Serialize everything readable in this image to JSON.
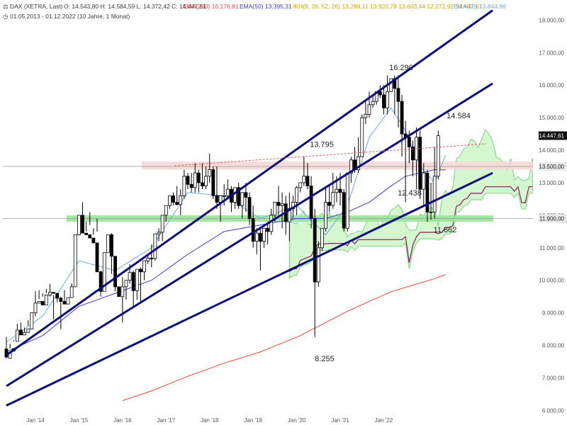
{
  "header": {
    "instrument": "DAX (XETRA, Last)",
    "ohlc": "O: 14.543,80  H: 14.584,59  L: 14.372,42  C: 14.447,61",
    "ema200": "EMA(200)  10.176,81",
    "ema50": "EMA(50)  13.395,31",
    "ikh": "IKH(9, 26, 52, 26)  13.288,11  13.920,78  13.603,44  12.272,92  14.447,61",
    "ema10": "EMA(10)  13.844,96",
    "range": "01.05.2013 - 01.12.2022  (10 Jahre, 1 Monat)"
  },
  "colors": {
    "up": "#ffffff",
    "down": "#000000",
    "ema200": "#e8453c",
    "ema50": "#3b3bc9",
    "ema10": "#6aa8e8",
    "cloud": "#d4f7d0",
    "cloudEdge": "#63c96a",
    "kijun": "#8b1a5a",
    "trend": "#0d0d7a",
    "redZone": "#f6d8d8",
    "greenZone": "#9be39a",
    "lastPrice": "#111111"
  },
  "chart_data": {
    "type": "candlestick",
    "title": "DAX (XETRA, Last)",
    "interval": "1 Monat",
    "x_tick_labels": [
      "Jan '14",
      "Jan '15",
      "Jan '16",
      "Jan '17",
      "Jan '18",
      "Jan '19",
      "Jan '20",
      "Jan '21",
      "Jan '22"
    ],
    "y_tick_labels": [
      "6.000,00",
      "7.000,00",
      "8.000,00",
      "9.000,00",
      "10.000,00",
      "11.000,00",
      "12.000,00",
      "13.000,00",
      "14.000,00",
      "15.000,00",
      "16.000,00",
      "17.000,00",
      "18.000,00"
    ],
    "ylim": [
      5900,
      18400
    ],
    "price_labels": [
      {
        "value": 14447.61,
        "text": "14.447,61"
      },
      {
        "value": 13500,
        "text": "13.500,00"
      },
      {
        "value": 11900,
        "text": "11.900,00"
      }
    ],
    "annotations": [
      {
        "text": "16.290",
        "value": 16290
      },
      {
        "text": "14.584",
        "value": 14584
      },
      {
        "text": "13.795",
        "value": 13795
      },
      {
        "text": "12.438",
        "value": 12438
      },
      {
        "text": "11.862",
        "value": 11862
      },
      {
        "text": "8.255",
        "value": 8255
      }
    ],
    "candles": [
      [
        7890,
        8260,
        7640,
        7600
      ],
      [
        7600,
        8050,
        7780,
        7900
      ],
      [
        7900,
        8160,
        7820,
        8120
      ],
      [
        8120,
        8660,
        8470,
        8300
      ],
      [
        8470,
        8700,
        8320,
        8350
      ],
      [
        8320,
        8550,
        8400,
        8400
      ],
      [
        8400,
        8770,
        8500,
        8600
      ],
      [
        8500,
        8620,
        9000,
        9000
      ],
      [
        9000,
        9660,
        9300,
        8900
      ],
      [
        9300,
        9700,
        9350,
        9420
      ],
      [
        9350,
        9600,
        9240,
        9500
      ],
      [
        9240,
        9730,
        9550,
        9600
      ],
      [
        9550,
        9890,
        9630,
        9500
      ],
      [
        9630,
        9550,
        9600,
        8800
      ],
      [
        9600,
        9330,
        9450,
        9600
      ],
      [
        9450,
        9500,
        9350,
        8500
      ],
      [
        9350,
        9700,
        9270,
        9300
      ],
      [
        9270,
        9600,
        9470,
        9600
      ],
      [
        9470,
        9900,
        9800,
        9700
      ],
      [
        9800,
        10810,
        11400,
        11400
      ],
      [
        11400,
        11900,
        12000,
        11600
      ],
      [
        12000,
        12400,
        11450,
        11600
      ],
      [
        11450,
        11800,
        11400,
        11500
      ],
      [
        11400,
        12100,
        11300,
        11700
      ],
      [
        11300,
        11600,
        11150,
        11400
      ],
      [
        11150,
        11900,
        10260,
        11500
      ],
      [
        10260,
        10300,
        9660,
        9500
      ],
      [
        9660,
        10200,
        10850,
        10000
      ],
      [
        10850,
        11150,
        11400,
        11000
      ],
      [
        11400,
        11450,
        10740,
        10200
      ],
      [
        10740,
        10700,
        9800,
        9660
      ],
      [
        9800,
        10100,
        9500,
        10200
      ],
      [
        9500,
        10100,
        9800,
        8700
      ],
      [
        9800,
        9900,
        10000,
        9400
      ],
      [
        10000,
        10500,
        10240,
        9900
      ],
      [
        10240,
        10300,
        9680,
        9200
      ],
      [
        9680,
        10100,
        10340,
        9400
      ],
      [
        10340,
        10400,
        10260,
        9300
      ],
      [
        10260,
        10500,
        10600,
        10000
      ],
      [
        10600,
        10800,
        10680,
        10500
      ],
      [
        10680,
        11100,
        10670,
        10400
      ],
      [
        10670,
        11000,
        11430,
        10600
      ],
      [
        11430,
        11600,
        11480,
        11200
      ],
      [
        11480,
        11800,
        12000,
        11200
      ],
      [
        12000,
        12300,
        12300,
        11800
      ],
      [
        12300,
        12400,
        12600,
        12200
      ],
      [
        12600,
        12700,
        12400,
        12300
      ],
      [
        12400,
        12900,
        12330,
        12300
      ],
      [
        12330,
        12800,
        12600,
        12000
      ],
      [
        12600,
        13400,
        13200,
        12500
      ],
      [
        13200,
        13300,
        12950,
        12800
      ],
      [
        12950,
        13300,
        12850,
        12700
      ],
      [
        12850,
        13600,
        13300,
        12700
      ],
      [
        13300,
        13400,
        13000,
        12700
      ],
      [
        13000,
        13600,
        12900,
        12800
      ],
      [
        12900,
        13500,
        13200,
        12800
      ],
      [
        13200,
        13900,
        13400,
        13000
      ],
      [
        13400,
        13500,
        12600,
        12500
      ],
      [
        12600,
        13500,
        12400,
        12200
      ],
      [
        12400,
        12500,
        12600,
        11800
      ],
      [
        12600,
        12950,
        12600,
        12300
      ],
      [
        12600,
        13100,
        12800,
        12500
      ],
      [
        12800,
        12900,
        12400,
        12100
      ],
      [
        12400,
        12700,
        12850,
        12200
      ],
      [
        12850,
        13000,
        12300,
        12200
      ],
      [
        12300,
        12600,
        12700,
        11900
      ],
      [
        12700,
        13000,
        12550,
        12100
      ],
      [
        12550,
        12700,
        11900,
        11700
      ],
      [
        11900,
        12300,
        11200,
        11000
      ],
      [
        11200,
        11600,
        11450,
        10800
      ],
      [
        11450,
        11600,
        11200,
        10300
      ],
      [
        11200,
        11400,
        11600,
        11000
      ],
      [
        11600,
        11800,
        11500,
        11100
      ],
      [
        11500,
        12200,
        12000,
        11400
      ],
      [
        12000,
        12400,
        12400,
        11800
      ],
      [
        12400,
        12900,
        12300,
        12000
      ],
      [
        12300,
        12700,
        12350,
        11600
      ],
      [
        12350,
        12600,
        11800,
        11400
      ],
      [
        11800,
        12700,
        12200,
        11200
      ],
      [
        12200,
        12600,
        12400,
        11900
      ],
      [
        12400,
        12900,
        12850,
        12000
      ],
      [
        12850,
        13000,
        13000,
        12700
      ],
      [
        13000,
        13800,
        13200,
        12900
      ],
      [
        13200,
        13600,
        12900,
        12800
      ],
      [
        12900,
        13200,
        11900,
        11600
      ],
      [
        11900,
        12200,
        9950,
        8255
      ],
      [
        9950,
        11200,
        11000,
        9800
      ],
      [
        11000,
        11600,
        11600,
        10900
      ],
      [
        11600,
        12900,
        12400,
        11500
      ],
      [
        12400,
        12900,
        12300,
        12100
      ],
      [
        12300,
        13300,
        12700,
        12200
      ],
      [
        12700,
        13200,
        12800,
        12400
      ],
      [
        12800,
        13300,
        12700,
        12300
      ],
      [
        12700,
        12800,
        11600,
        11500
      ],
      [
        11600,
        13300,
        13300,
        11500
      ],
      [
        13300,
        13800,
        13700,
        13000
      ],
      [
        13700,
        14100,
        13400,
        13300
      ],
      [
        13400,
        14400,
        13800,
        13300
      ],
      [
        13800,
        15100,
        15000,
        13900
      ],
      [
        15000,
        15500,
        15100,
        14800
      ],
      [
        15100,
        15800,
        15400,
        15000
      ],
      [
        15400,
        15700,
        15500,
        15300
      ],
      [
        15500,
        15800,
        15800,
        15400
      ],
      [
        15800,
        16000,
        15700,
        15600
      ],
      [
        15700,
        16000,
        15300,
        15100
      ],
      [
        15300,
        16300,
        15800,
        15100
      ],
      [
        15800,
        16200,
        16200,
        15800
      ],
      [
        16200,
        16300,
        15900,
        15100
      ],
      [
        15900,
        16300,
        15500,
        14700
      ],
      [
        15500,
        15700,
        14500,
        13800
      ],
      [
        14500,
        14900,
        14400,
        12400
      ],
      [
        14400,
        14600,
        14100,
        13600
      ],
      [
        14100,
        14300,
        13700,
        13200
      ],
      [
        13700,
        14700,
        14400,
        12800
      ],
      [
        14400,
        14600,
        12800,
        12500
      ],
      [
        12800,
        13600,
        13300,
        12300
      ],
      [
        13300,
        13400,
        12100,
        11800
      ],
      [
        12100,
        13000,
        12100,
        11862
      ],
      [
        12100,
        14100,
        13200,
        11900
      ],
      [
        13200,
        14600,
        14447,
        13100
      ]
    ],
    "series": [
      {
        "name": "EMA(10)",
        "x": [
          0,
          10,
          20,
          30,
          40,
          50,
          60,
          70,
          80,
          88,
          94,
          100,
          106,
          110,
          114,
          118,
          121
        ],
        "y": [
          8100,
          8900,
          10600,
          10300,
          11000,
          12700,
          12600,
          11900,
          12300,
          11400,
          12300,
          14400,
          15300,
          14600,
          13500,
          13000,
          13845
        ]
      },
      {
        "name": "EMA(50)",
        "x": [
          0,
          10,
          20,
          30,
          40,
          50,
          60,
          70,
          80,
          88,
          94,
          100,
          106,
          110,
          114,
          118,
          121
        ],
        "y": [
          7800,
          8300,
          9200,
          9600,
          10000,
          10800,
          11500,
          11700,
          11900,
          11900,
          12100,
          12400,
          12900,
          13200,
          13300,
          13400,
          13395
        ]
      },
      {
        "name": "EMA(200)",
        "x": [
          32,
          40,
          50,
          60,
          70,
          80,
          88,
          94,
          100,
          106,
          112,
          118,
          121
        ],
        "y": [
          6300,
          6600,
          7050,
          7450,
          7800,
          8250,
          8700,
          9050,
          9350,
          9650,
          9850,
          10050,
          10177
        ]
      }
    ],
    "trend_lines": [
      {
        "from": [
          0,
          7700
        ],
        "to": [
          134,
          18300
        ]
      },
      {
        "from": [
          0,
          6750
        ],
        "to": [
          134,
          16050
        ]
      },
      {
        "from": [
          0,
          6150
        ],
        "to": [
          134,
          13300
        ]
      }
    ],
    "resistance_zone": [
      13400,
      13650
    ],
    "support_zone": [
      11800,
      12000
    ]
  }
}
